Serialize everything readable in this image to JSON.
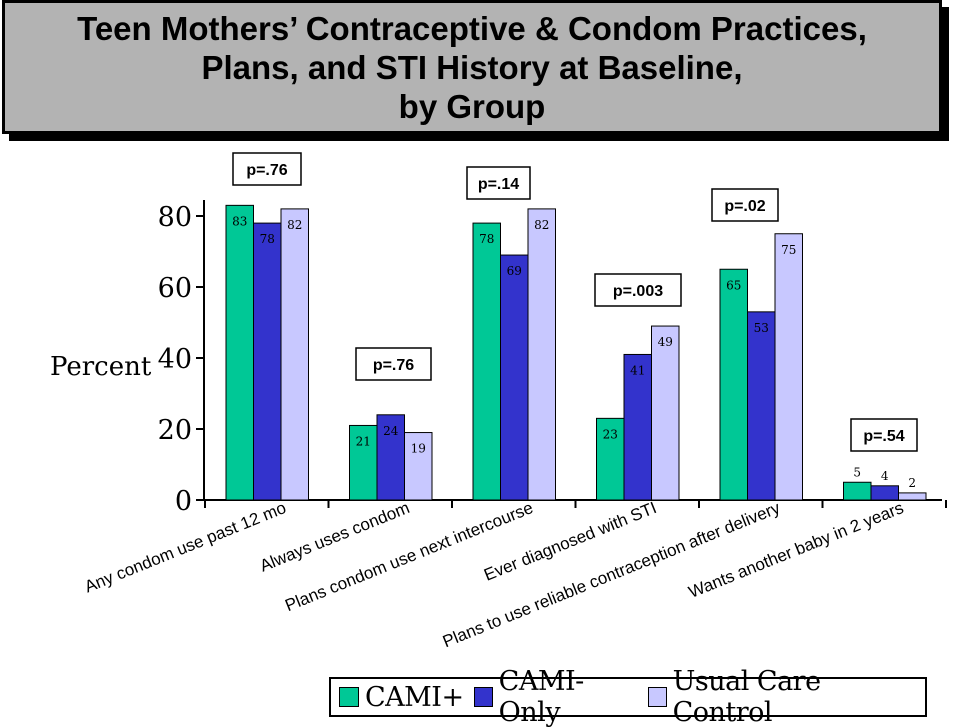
{
  "title": {
    "line1": "Teen Mothers’ Contraceptive & Condom Practices,",
    "line2": "Plans, and STI History at Baseline,",
    "line3": "by Group"
  },
  "colors": {
    "cami_plus": "#00c896",
    "cami_only": "#3333cc",
    "usual_care": "#c8c8ff"
  },
  "legend": [
    {
      "label": "CAMI+",
      "color": "#00c896"
    },
    {
      "label": "CAMI-Only",
      "color": "#3333cc"
    },
    {
      "label": "Usual Care Control",
      "color": "#c8c8ff"
    }
  ],
  "chart_data": {
    "type": "bar",
    "ylabel": "Percent",
    "ylim": [
      0,
      80
    ],
    "yticks": [
      0,
      20,
      40,
      60,
      80
    ],
    "categories": [
      "Any condom use past 12 mo",
      "Always uses condom",
      "Plans condom use next intercourse",
      "Ever diagnosed with STI",
      "Plans to use reliable contraception after delivery",
      "Wants another baby in 2 years"
    ],
    "series": [
      {
        "name": "CAMI+",
        "color": "#00c896",
        "values": [
          83,
          21,
          78,
          23,
          65,
          5
        ]
      },
      {
        "name": "CAMI-Only",
        "color": "#3333cc",
        "values": [
          78,
          24,
          69,
          41,
          53,
          4
        ]
      },
      {
        "name": "Usual Care Control",
        "color": "#c8c8ff",
        "values": [
          82,
          19,
          82,
          49,
          75,
          2
        ]
      }
    ],
    "p_values": [
      "p=.76",
      "p=.76",
      "p=.14",
      "p=.003",
      "p=.02",
      "p=.54"
    ]
  }
}
